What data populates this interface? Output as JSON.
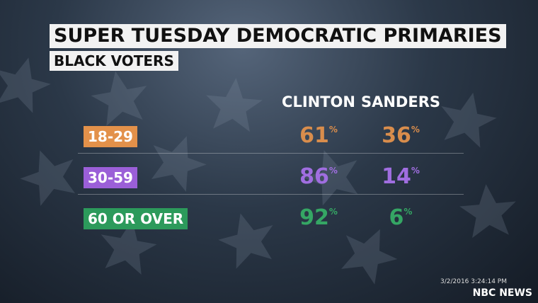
{
  "header": {
    "title": "SUPER TUESDAY DEMOCRATIC PRIMARIES",
    "subtitle": "BLACK VOTERS"
  },
  "table": {
    "columns": [
      "CLINTON",
      "SANDERS"
    ],
    "unit": "%",
    "rows": [
      {
        "label": "18-29",
        "color": "#e3914a",
        "text_color": "#d98d4c",
        "values": [
          61,
          36
        ]
      },
      {
        "label": "30-59",
        "color": "#9b5fd8",
        "text_color": "#a06ee0",
        "values": [
          86,
          14
        ]
      },
      {
        "label": "60 OR OVER",
        "color": "#2c9a5b",
        "text_color": "#35a664",
        "values": [
          92,
          6
        ]
      }
    ]
  },
  "footer": {
    "timestamp": "3/2/2016 3:24:14 PM",
    "brand": "NBC NEWS"
  }
}
